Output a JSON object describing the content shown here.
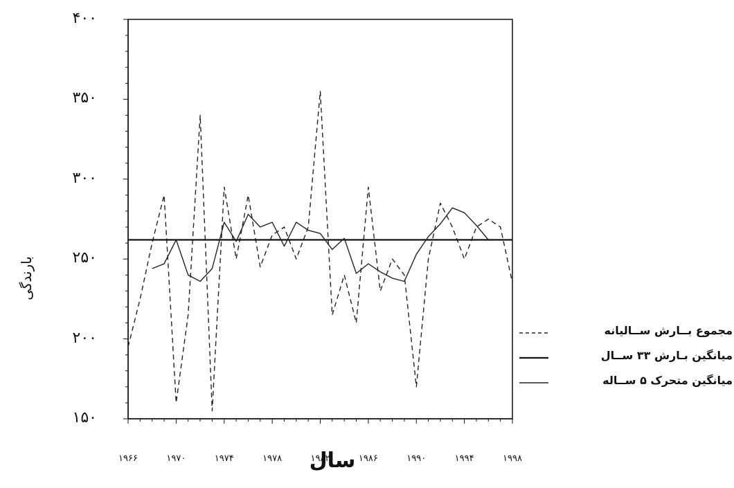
{
  "chart_data": {
    "type": "line",
    "xlabel": "سال",
    "ylabel": "بارندگی",
    "xlim": [
      1966,
      1998
    ],
    "ylim": [
      150,
      400
    ],
    "yticks": [
      {
        "value": 400,
        "label": "۴۰۰"
      },
      {
        "value": 350,
        "label": "۳۵۰"
      },
      {
        "value": 300,
        "label": "۳۰۰"
      },
      {
        "value": 250,
        "label": "۲۵۰"
      },
      {
        "value": 200,
        "label": "۲۰۰"
      },
      {
        "value": 150,
        "label": "۱۵۰"
      }
    ],
    "xticks": [
      {
        "value": 1966,
        "label": "۱۹۶۶"
      },
      {
        "value": 1970,
        "label": "۱۹۷۰"
      },
      {
        "value": 1974,
        "label": "۱۹۷۴"
      },
      {
        "value": 1978,
        "label": "۱۹۷۸"
      },
      {
        "value": 1982,
        "label": "۱۹۸۲"
      },
      {
        "value": 1986,
        "label": "۱۹۸۶"
      },
      {
        "value": 1990,
        "label": "۱۹۹۰"
      },
      {
        "value": 1994,
        "label": "۱۹۹۴"
      },
      {
        "value": 1998,
        "label": "۱۹۹۸"
      }
    ],
    "grid": false,
    "legend_position": "right",
    "series": [
      {
        "name": "مجموع بــارش ســالیانه",
        "style": "dashed-thin",
        "color": "#222222",
        "x": [
          1966,
          1967,
          1968,
          1969,
          1970,
          1971,
          1972,
          1973,
          1974,
          1975,
          1976,
          1977,
          1978,
          1979,
          1980,
          1981,
          1982,
          1983,
          1984,
          1985,
          1986,
          1987,
          1988,
          1989,
          1990,
          1991,
          1992,
          1993,
          1994,
          1995,
          1996,
          1997,
          1998
        ],
        "y": [
          195,
          225,
          260,
          290,
          160,
          215,
          340,
          155,
          295,
          250,
          290,
          245,
          265,
          270,
          250,
          270,
          355,
          215,
          240,
          210,
          295,
          230,
          250,
          240,
          170,
          250,
          285,
          270,
          250,
          270,
          275,
          270,
          235
        ]
      },
      {
        "name": "میانگین بـارش ۳۳ ســال",
        "style": "solid-thick",
        "color": "#111111",
        "x": [
          1966,
          1998
        ],
        "y": [
          262,
          262
        ]
      },
      {
        "name": "میانگین متحرک ۵ ســاله",
        "style": "solid-thin",
        "color": "#222222",
        "x": [
          1968,
          1969,
          1970,
          1971,
          1972,
          1973,
          1974,
          1975,
          1976,
          1977,
          1978,
          1979,
          1980,
          1981,
          1982,
          1983,
          1984,
          1985,
          1986,
          1987,
          1988,
          1989,
          1990,
          1991,
          1992,
          1993,
          1994,
          1995,
          1996
        ],
        "y": [
          244,
          247,
          262,
          240,
          236,
          244,
          273,
          261,
          278,
          270,
          273,
          258,
          273,
          268,
          266,
          256,
          263,
          241,
          247,
          242,
          238,
          236,
          253,
          264,
          272,
          282,
          279,
          271,
          262
        ]
      }
    ]
  }
}
